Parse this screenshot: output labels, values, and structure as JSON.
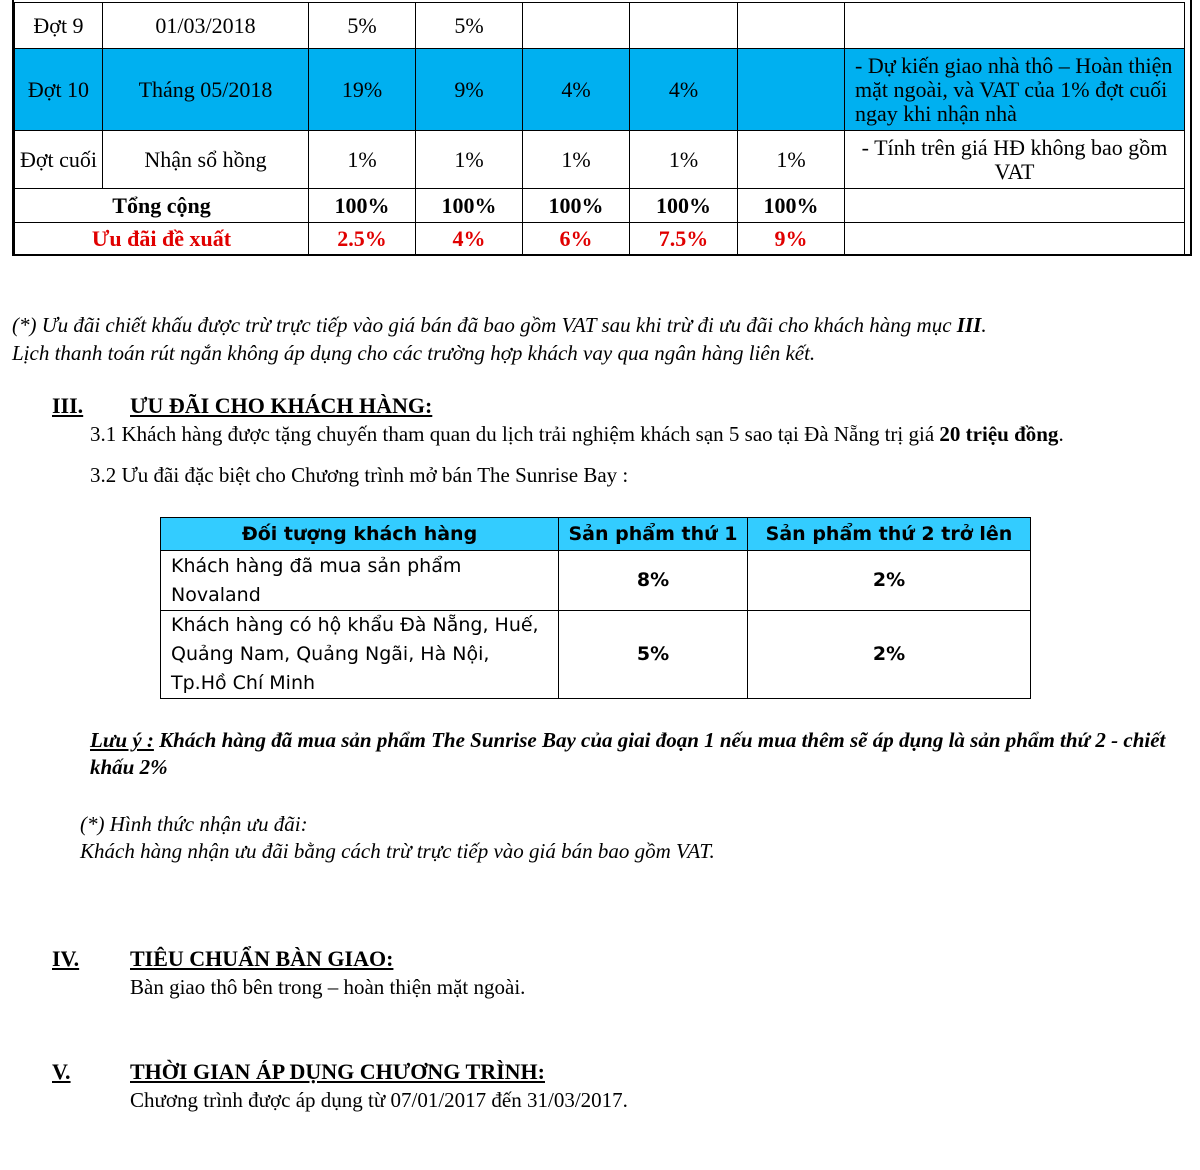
{
  "payment_table": {
    "rows": [
      {
        "phase": "Đợt 9",
        "date": "01/03/2018",
        "v": [
          "5%",
          "5%",
          "",
          "",
          ""
        ],
        "note": "",
        "highlight": false
      },
      {
        "phase": "Đợt 10",
        "date": "Tháng 05/2018",
        "v": [
          "19%",
          "9%",
          "4%",
          "4%",
          ""
        ],
        "note": "- Dự kiến giao nhà thô – Hoàn thiện mặt ngoài, và VAT của 1% đợt cuối ngay khi nhận nhà",
        "highlight": true
      },
      {
        "phase": "Đợt cuối",
        "date": "Nhận sổ hồng",
        "v": [
          "1%",
          "1%",
          "1%",
          "1%",
          "1%"
        ],
        "note": "- Tính trên giá HĐ không bao gồm VAT",
        "highlight": false
      }
    ],
    "total": {
      "label": "Tổng cộng",
      "v": [
        "100%",
        "100%",
        "100%",
        "100%",
        "100%"
      ]
    },
    "offer": {
      "label": "Ưu đãi đề xuất",
      "v": [
        "2.5%",
        "4%",
        "6%",
        "7.5%",
        "9%"
      ]
    },
    "highlight_color": "#00b0f0",
    "offer_color": "#e00000"
  },
  "footnote": {
    "line1": "(*) Ưu đãi chiết khấu được trừ trực tiếp vào giá bán đã bao gồm VAT sau khi trừ đi ưu đãi cho khách hàng mục ",
    "line1_bold": "III",
    "line1_end": ".",
    "line2": "Lịch thanh toán rút ngắn không áp dụng cho các trường hợp khách vay qua ngân hàng liên kết."
  },
  "section3": {
    "num": "III.",
    "title": "ƯU ĐÃI CHO KHÁCH HÀNG:",
    "item1": "3.1  Khách hàng được tặng chuyến tham quan du lịch trải nghiệm khách sạn 5 sao tại Đà Nẵng trị giá ",
    "item1_bold": "20 triệu đồng",
    "item1_end": ".",
    "item2": "3.2  Ưu đãi đặc biệt cho Chương trình mở bán The Sunrise Bay :",
    "table": {
      "headers": [
        "Đối tượng khách hàng",
        "Sản phẩm thứ 1",
        "Sản phẩm thứ 2 trở lên"
      ],
      "rows": [
        [
          "Khách hàng đã mua sản phẩm Novaland",
          "8%",
          "2%"
        ],
        [
          "Khách hàng có hộ khẩu Đà Nẵng, Huế, Quảng Nam, Quảng Ngãi, Hà Nội, Tp.Hồ Chí Minh",
          "5%",
          "2%"
        ]
      ],
      "header_color": "#33ccff"
    },
    "note_label": "Lưu ý :",
    "note": " Khách hàng đã mua sản phẩm The Sunrise Bay của giai đoạn 1 nếu mua thêm sẽ áp dụng là sản phẩm thứ 2 - chiết khấu 2%",
    "receive1": "(*) Hình thức nhận ưu đãi:",
    "receive2": "Khách hàng nhận ưu đãi bằng cách trừ trực tiếp vào giá bán bao gồm VAT."
  },
  "section4": {
    "num": "IV.",
    "title": "TIÊU CHUẨN BÀN GIAO:",
    "text": "Bàn giao thô bên trong – hoàn thiện mặt ngoài."
  },
  "section5": {
    "num": "V.",
    "title": "THỜI GIAN ÁP DỤNG CHƯƠNG TRÌNH:",
    "text": "Chương trình được áp dụng từ  07/01/2017 đến 31/03/2017."
  }
}
